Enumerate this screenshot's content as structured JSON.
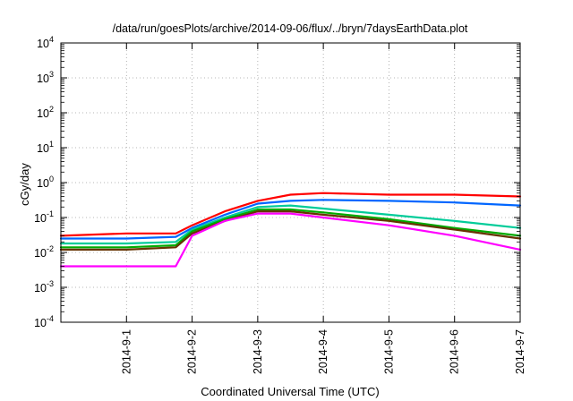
{
  "chart_data": {
    "type": "line",
    "title": "/data/run/goesPlots/archive/2014-09-06/flux/../bryn/7daysEarthData.plot",
    "xlabel": "Coordinated Universal Time (UTC)",
    "ylabel": "cGy/day",
    "y_scale": "log",
    "ylim": [
      0.0001,
      10000
    ],
    "y_ticks": [
      {
        "value": 0.0001,
        "base": "10",
        "exp": "-4"
      },
      {
        "value": 0.001,
        "base": "10",
        "exp": "-3"
      },
      {
        "value": 0.01,
        "base": "10",
        "exp": "-2"
      },
      {
        "value": 0.1,
        "base": "10",
        "exp": "-1"
      },
      {
        "value": 1,
        "base": "10",
        "exp": "0"
      },
      {
        "value": 10,
        "base": "10",
        "exp": "1"
      },
      {
        "value": 100,
        "base": "10",
        "exp": "2"
      },
      {
        "value": 1000,
        "base": "10",
        "exp": "3"
      },
      {
        "value": 10000,
        "base": "10",
        "exp": "4"
      }
    ],
    "x_range": [
      "2014-08-31 00:00",
      "2014-09-07 00:00"
    ],
    "x_ticks": [
      "2014-9-1",
      "2014-9-2",
      "2014-9-3",
      "2014-9-4",
      "2014-9-5",
      "2014-9-6",
      "2014-9-7"
    ],
    "grid": true,
    "legend": "none",
    "series": [
      {
        "color": "#ff0000",
        "x": [
          "2014-08-31",
          "2014-09-01",
          "2014-09-01 18:00",
          "2014-09-02",
          "2014-09-02 12:00",
          "2014-09-03",
          "2014-09-03 12:00",
          "2014-09-04",
          "2014-09-05",
          "2014-09-06",
          "2014-09-07"
        ],
        "y": [
          0.03,
          0.035,
          0.035,
          0.06,
          0.15,
          0.3,
          0.45,
          0.5,
          0.45,
          0.45,
          0.4
        ]
      },
      {
        "color": "#0066ff",
        "x": [
          "2014-08-31",
          "2014-09-01",
          "2014-09-01 18:00",
          "2014-09-02",
          "2014-09-02 12:00",
          "2014-09-03",
          "2014-09-03 12:00",
          "2014-09-04",
          "2014-09-05",
          "2014-09-06",
          "2014-09-07"
        ],
        "y": [
          0.025,
          0.025,
          0.028,
          0.05,
          0.12,
          0.25,
          0.3,
          0.32,
          0.3,
          0.27,
          0.22
        ]
      },
      {
        "color": "#00cc99",
        "x": [
          "2014-08-31",
          "2014-09-01",
          "2014-09-01 18:00",
          "2014-09-02",
          "2014-09-02 12:00",
          "2014-09-03",
          "2014-09-03 12:00",
          "2014-09-04",
          "2014-09-05",
          "2014-09-06",
          "2014-09-07"
        ],
        "y": [
          0.018,
          0.018,
          0.02,
          0.045,
          0.1,
          0.2,
          0.22,
          0.18,
          0.12,
          0.08,
          0.05
        ]
      },
      {
        "color": "#00aa00",
        "x": [
          "2014-08-31",
          "2014-09-01",
          "2014-09-01 18:00",
          "2014-09-02",
          "2014-09-02 12:00",
          "2014-09-03",
          "2014-09-03 12:00",
          "2014-09-04",
          "2014-09-05",
          "2014-09-06",
          "2014-09-07"
        ],
        "y": [
          0.014,
          0.014,
          0.016,
          0.04,
          0.09,
          0.17,
          0.17,
          0.14,
          0.09,
          0.05,
          0.03
        ]
      },
      {
        "color": "#663300",
        "x": [
          "2014-08-31",
          "2014-09-01",
          "2014-09-01 18:00",
          "2014-09-02",
          "2014-09-02 12:00",
          "2014-09-03",
          "2014-09-03 12:00",
          "2014-09-04",
          "2014-09-05",
          "2014-09-06",
          "2014-09-07"
        ],
        "y": [
          0.012,
          0.012,
          0.014,
          0.035,
          0.08,
          0.15,
          0.15,
          0.12,
          0.08,
          0.045,
          0.025
        ]
      },
      {
        "color": "#ff00ff",
        "x": [
          "2014-08-31",
          "2014-09-01",
          "2014-09-01 18:00",
          "2014-09-02",
          "2014-09-02 12:00",
          "2014-09-03",
          "2014-09-03 12:00",
          "2014-09-04",
          "2014-09-05",
          "2014-09-06",
          "2014-09-07"
        ],
        "y": [
          0.004,
          0.004,
          0.004,
          0.03,
          0.08,
          0.13,
          0.13,
          0.1,
          0.06,
          0.03,
          0.012
        ]
      }
    ]
  }
}
